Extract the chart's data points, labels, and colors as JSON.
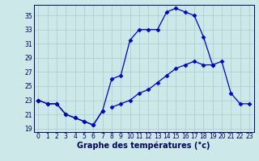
{
  "xlabel": "Graphe des températures (°c)",
  "background_color": "#cce8e8",
  "line_color": "#0000cc",
  "grid_color": "#aacccc",
  "x_hours": [
    0,
    1,
    2,
    3,
    4,
    5,
    6,
    7,
    8,
    9,
    10,
    11,
    12,
    13,
    14,
    15,
    16,
    17,
    18,
    19,
    20,
    21,
    22,
    23
  ],
  "line1": [
    23,
    22.5,
    22.5,
    21,
    20.5,
    20,
    19.5,
    21.5,
    null,
    null,
    null,
    null,
    null,
    null,
    null,
    null,
    null,
    null,
    null,
    null,
    null,
    null,
    null,
    null
  ],
  "line2": [
    23,
    22.5,
    22.5,
    21,
    20.5,
    20,
    19.5,
    21.5,
    26,
    26.5,
    31.5,
    33,
    33,
    33,
    35.5,
    36,
    35.5,
    35,
    32,
    28,
    null,
    null,
    null,
    null
  ],
  "line3": [
    23,
    null,
    null,
    null,
    null,
    null,
    null,
    null,
    22,
    22.5,
    23,
    24,
    24.5,
    25.5,
    26.5,
    27.5,
    28,
    28.5,
    28,
    28,
    28.5,
    24,
    22.5,
    22.5
  ],
  "ylim": [
    18.5,
    36.5
  ],
  "xlim": [
    -0.5,
    23.5
  ],
  "yticks": [
    19,
    21,
    23,
    25,
    27,
    29,
    31,
    33,
    35
  ],
  "xticks": [
    0,
    1,
    2,
    3,
    4,
    5,
    6,
    7,
    8,
    9,
    10,
    11,
    12,
    13,
    14,
    15,
    16,
    17,
    18,
    19,
    20,
    21,
    22,
    23
  ],
  "tick_fontsize": 5.5,
  "xlabel_fontsize": 7,
  "marker_size": 2.5,
  "line_width": 0.9
}
